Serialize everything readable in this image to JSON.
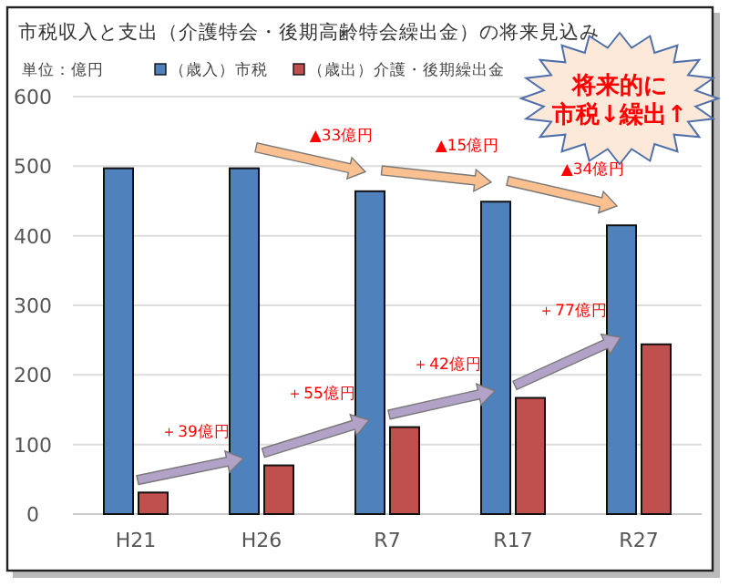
{
  "chart_data": {
    "type": "bar",
    "title": "市税収入と支出（介護特会・後期高齢特会繰出金）の将来見込み",
    "categories": [
      "H21",
      "H26",
      "R7",
      "R17",
      "R27"
    ],
    "series": [
      {
        "name": "（歳入）市税",
        "color": "#4f81bd",
        "values": [
          497,
          497,
          464,
          449,
          415
        ]
      },
      {
        "name": "（歳出）介護・後期繰出金",
        "color": "#c0504d",
        "values": [
          31,
          70,
          125,
          167,
          244
        ]
      }
    ],
    "ylim": [
      0,
      600
    ],
    "yticks": [
      0,
      100,
      200,
      300,
      400,
      500,
      600
    ],
    "grid": "y",
    "legend": "top left",
    "annotations": [
      "単位：億円",
      "▲33億円",
      "▲15億円",
      "▲34億円",
      {
        "text": "＋39億円",
        "x": "H26",
        "y": 70
      },
      {
        "text": "＋55億円",
        "x": "R7",
        "y": 125
      },
      {
        "text": "＋42億円",
        "x": "R17",
        "y": 167
      },
      {
        "text": "＋77億円",
        "x": "R27",
        "y": 244
      },
      "将来的に",
      "市税↓繰出↑"
    ]
  }
}
